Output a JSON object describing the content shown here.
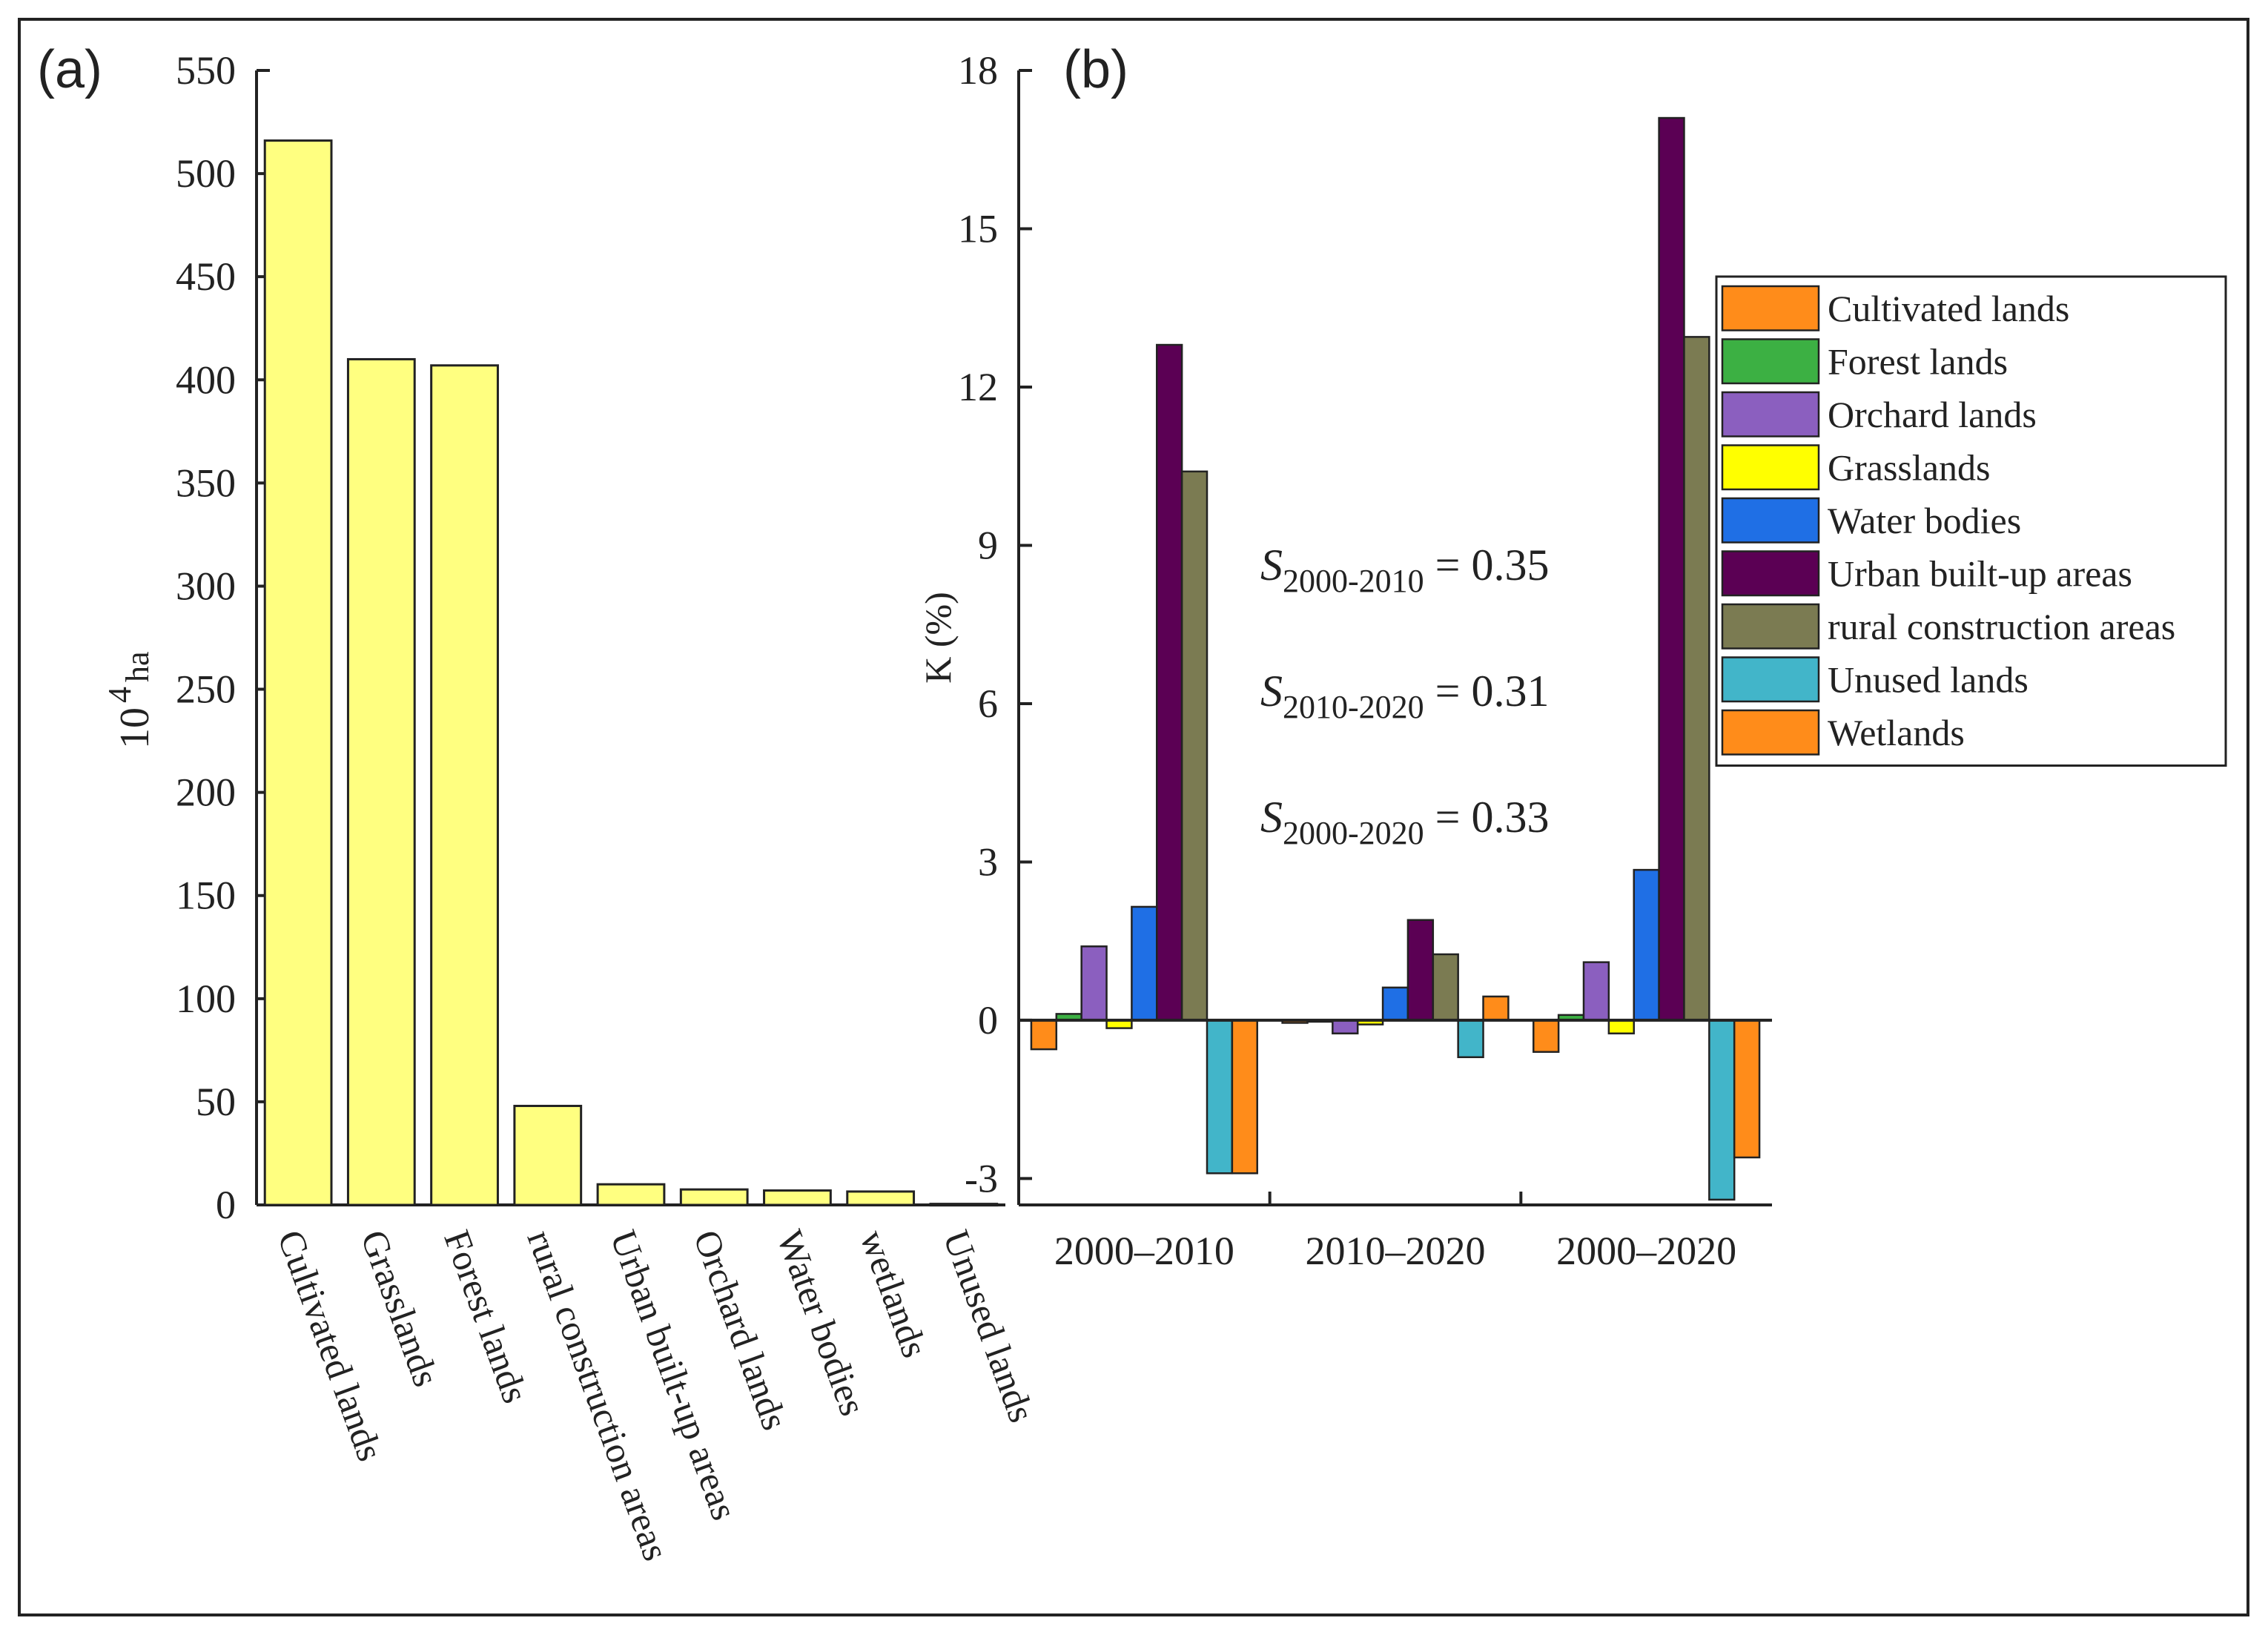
{
  "chart_data": [
    {
      "panel_label": "(a)",
      "type": "bar",
      "title": "",
      "ylabel_base": "10",
      "ylabel_exp": "4",
      "ylabel_unit": "ha",
      "ylim": [
        0,
        550
      ],
      "yticks": [
        0,
        50,
        100,
        150,
        200,
        250,
        300,
        350,
        400,
        450,
        500,
        550
      ],
      "categories": [
        "Cultivated lands",
        "Grasslands",
        "Forest lands",
        "rural construction areas",
        "Urban built-up areas",
        "Orchard lands",
        "Water bodies",
        "wetlands",
        "Unused lands"
      ],
      "values": [
        516,
        410,
        407,
        48,
        10,
        7.5,
        7,
        6.5,
        0.5
      ],
      "bar_color": "#FFFF80"
    },
    {
      "panel_label": "(b)",
      "type": "bar",
      "title": "",
      "ylabel": "K (%)",
      "ylim": [
        -3.5,
        18
      ],
      "yticks": [
        -3,
        0,
        3,
        6,
        9,
        12,
        15,
        18
      ],
      "categories": [
        "2000–2010",
        "2010–2020",
        "2000–2020"
      ],
      "series": [
        {
          "name": "Cultivated lands",
          "color": "#FF8C1A",
          "values": [
            -0.55,
            -0.05,
            -0.6
          ]
        },
        {
          "name": "Forest lands",
          "color": "#3CB043",
          "values": [
            0.12,
            -0.02,
            0.1
          ]
        },
        {
          "name": "Orchard lands",
          "color": "#8B5FBF",
          "values": [
            1.4,
            -0.25,
            1.1
          ]
        },
        {
          "name": "Grasslands",
          "color": "#FFFF00",
          "values": [
            -0.15,
            -0.08,
            -0.25
          ]
        },
        {
          "name": "Water bodies",
          "color": "#1F6FE5",
          "values": [
            2.15,
            0.62,
            2.85
          ]
        },
        {
          "name": "Urban built-up areas",
          "color": "#5B0054",
          "values": [
            12.8,
            1.9,
            17.1
          ]
        },
        {
          "name": "rural construction areas",
          "color": "#7B7B52",
          "values": [
            10.4,
            1.25,
            12.95
          ]
        },
        {
          "name": "Unused lands",
          "color": "#42B5C9",
          "values": [
            -2.9,
            -0.7,
            -3.4
          ]
        },
        {
          "name": "Wetlands",
          "color": "#FF8C1A",
          "values": [
            -2.9,
            0.45,
            -2.6
          ]
        }
      ],
      "legend_position": "right",
      "annotations": [
        {
          "symbol": "S",
          "subscript": "2000-2010",
          "text": " = 0.35"
        },
        {
          "symbol": "S",
          "subscript": "2010-2020",
          "text": " = 0.31"
        },
        {
          "symbol": "S",
          "subscript": "2000-2020",
          "text": " = 0.33"
        }
      ]
    }
  ]
}
